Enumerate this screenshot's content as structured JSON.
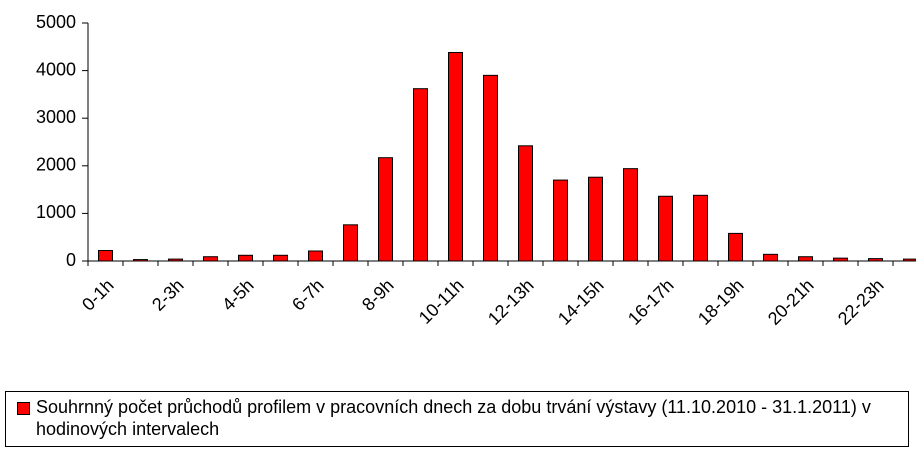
{
  "chart_data": {
    "type": "bar",
    "categories": [
      "0-1h",
      null,
      "2-3h",
      null,
      "4-5h",
      null,
      "6-7h",
      null,
      "8-9h",
      null,
      "10-11h",
      null,
      "12-13h",
      null,
      "14-15h",
      null,
      "16-17h",
      null,
      "18-19h",
      null,
      "20-21h",
      null,
      "22-23h",
      null
    ],
    "series": [
      {
        "name": "Souhrnný počet průchodů profilem v pracovních dnech za dobu trvání výstavy (11.10.2010 - 31.1.2011) v hodinových intervalech",
        "color": "#ff0000",
        "values": [
          220,
          30,
          40,
          90,
          120,
          120,
          210,
          760,
          2170,
          3620,
          4380,
          3900,
          2420,
          1700,
          1760,
          1940,
          1360,
          1380,
          580,
          140,
          90,
          60,
          50,
          40
        ]
      }
    ],
    "ylim": [
      0,
      5000
    ],
    "yticks": [
      0,
      1000,
      2000,
      3000,
      4000,
      5000
    ],
    "grid": false,
    "legend": "bottom"
  }
}
